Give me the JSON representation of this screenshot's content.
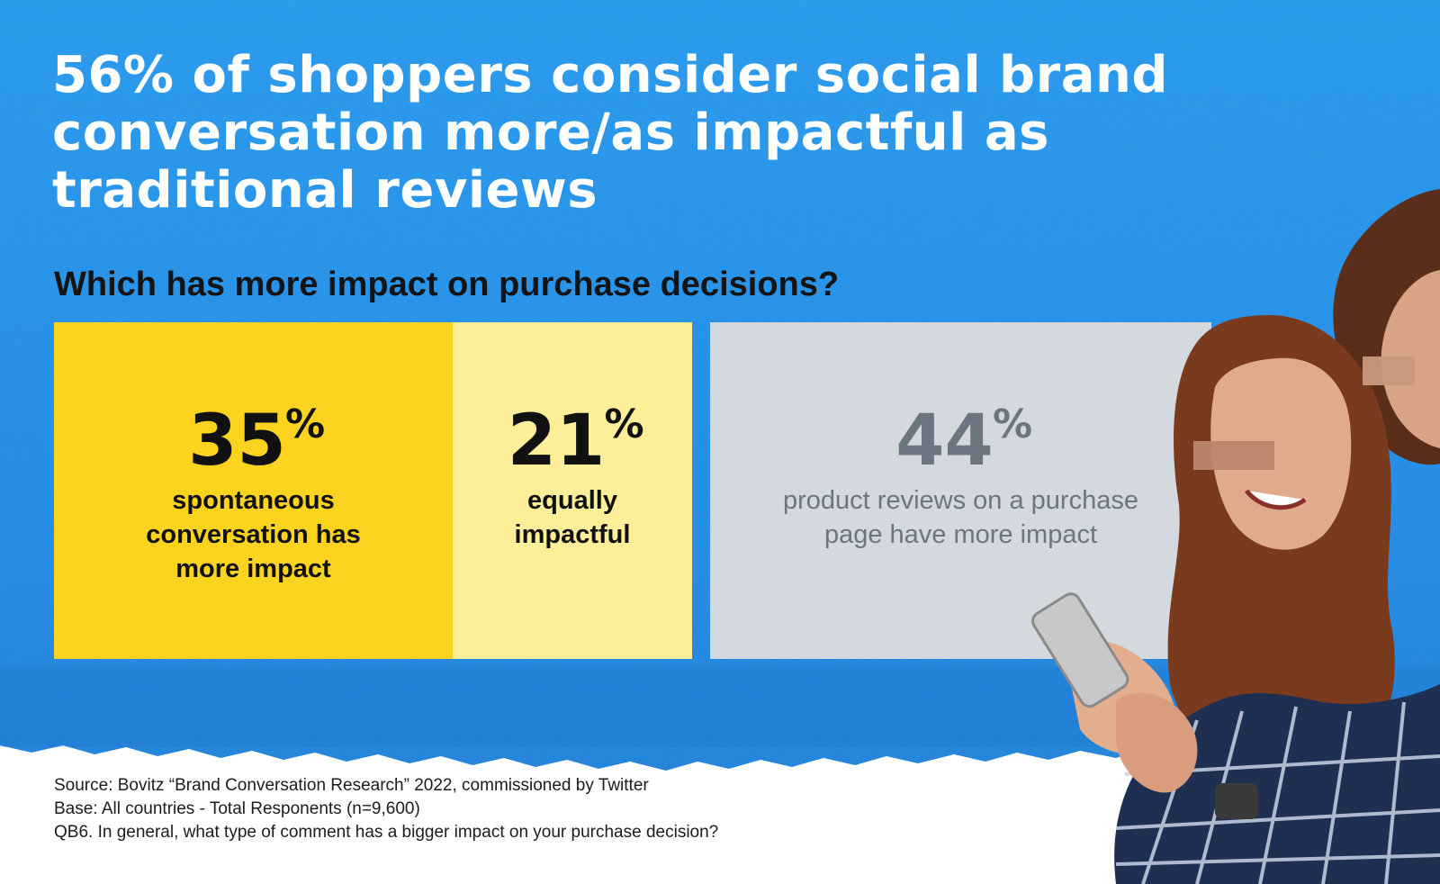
{
  "headline": "56% of shoppers consider social brand conversation more/as impactful as traditional reviews",
  "subtitle": "Which has more impact on purchase decisions?",
  "colors": {
    "background_blue": "#1f8ee8",
    "spontaneous": "#fcd41f",
    "equally": "#fdef9a",
    "reviews": "#d3d9de",
    "text_dark": "#111111",
    "text_grey": "#6b7680"
  },
  "chart_data": {
    "type": "bar",
    "orientation": "stacked-horizontal",
    "categories": [
      "spontaneous conversation has more impact",
      "equally impactful",
      "product reviews on a purchase page have more impact"
    ],
    "values": [
      35,
      21,
      44
    ],
    "value_labels": [
      "35",
      "21",
      "44"
    ],
    "value_suffix": "%",
    "label_lines": [
      [
        "spontaneous",
        "conversation has",
        "more impact"
      ],
      [
        "equally",
        "impactful"
      ],
      [
        "product reviews on a purchase",
        "page have more impact"
      ]
    ],
    "title": "",
    "xlabel": "",
    "ylabel": "",
    "ylim": [
      0,
      100
    ]
  },
  "source": {
    "line1": "Source: Bovitz “Brand Conversation Research” 2022, commissioned by Twitter",
    "line2": "Base: All countries - Total Responents (n=9,600)",
    "line3": "QB6. In general, what type of comment has a bigger impact on your purchase decision?"
  },
  "photo": {
    "icon": "two-women-with-smartphone-photo"
  }
}
